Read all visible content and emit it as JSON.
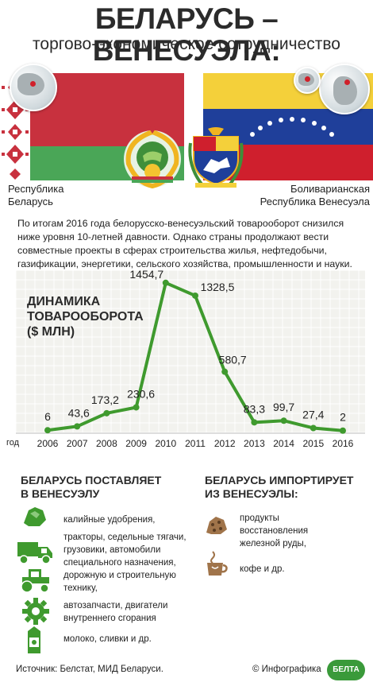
{
  "header": {
    "title": "БЕЛАРУСЬ – ВЕНЕСУЭЛА:",
    "subtitle": "торгово-экономическое сотрудничество"
  },
  "countries": {
    "left": {
      "line1": "Республика",
      "line2": "Беларусь"
    },
    "right": {
      "line1": "Боливарианская",
      "line2": "Республика Венесуэла"
    }
  },
  "intro": "По итогам 2016 года белорусско-венесуэльский товарооборот снизился ниже уровня 10-летней давности. Однако страны продолжают вести совместные проекты в сферах строительства жилья, нефтедобычи, газификации, энергетики, сельского хозяйства, промышленности и науки.",
  "chart_data": {
    "type": "line",
    "title": "ДИНАМИКА ТОВАРООБОРОТА ($ МЛН)",
    "xlabel": "год",
    "x": [
      "2006",
      "2007",
      "2008",
      "2009",
      "2010",
      "2011",
      "2012",
      "2013",
      "2014",
      "2015",
      "2016"
    ],
    "values": [
      6,
      43.6,
      173.2,
      230.6,
      1454.7,
      1328.5,
      580.7,
      83.3,
      99.7,
      27.4,
      2
    ],
    "labels": [
      "6",
      "43,6",
      "173,2",
      "230,6",
      "1454,7",
      "1328,5",
      "580,7",
      "83,3",
      "99,7",
      "27,4",
      "2"
    ],
    "ylim": [
      0,
      1500
    ],
    "grid": true,
    "line_color": "#3f9a2e"
  },
  "exports": {
    "heading_line1": "БЕЛАРУСЬ ПОСТАВЛЯЕТ",
    "heading_line2": "В ВЕНЕСУЭЛУ",
    "items": [
      {
        "icon": "fertilizer-icon",
        "lines": [
          "калийные удобрения,"
        ]
      },
      {
        "icon": "truck-icon",
        "lines": [
          "тракторы, седельные тягачи,",
          "грузовики, автомобили",
          "специального назначения,",
          "дорожную и строительную",
          "технику,"
        ]
      },
      {
        "icon": "gear-icon",
        "lines": [
          "автозапчасти, двигатели",
          "внутреннего сгорания"
        ]
      },
      {
        "icon": "milk-icon",
        "lines": [
          "молоко, сливки и др."
        ]
      }
    ]
  },
  "imports": {
    "heading_line1": "БЕЛАРУСЬ ИМПОРТИРУЕТ",
    "heading_line2": "ИЗ ВЕНЕСУЭЛЫ:",
    "items": [
      {
        "icon": "ore-icon",
        "lines": [
          "продукты",
          "восстановления",
          "железной руды,"
        ]
      },
      {
        "icon": "coffee-icon",
        "lines": [
          "кофе и др."
        ]
      }
    ]
  },
  "footer": {
    "source": "Источник: Белстат, МИД Беларуси.",
    "credit": "© Инфографика",
    "logo_text": "БЕЛТА"
  },
  "colors": {
    "green": "#3f9a2e",
    "by_red": "#c8313e",
    "by_green": "#4aa657",
    "ve_yellow": "#f4d03a",
    "ve_blue": "#1f3f9a",
    "ve_red": "#cf1f2d"
  }
}
